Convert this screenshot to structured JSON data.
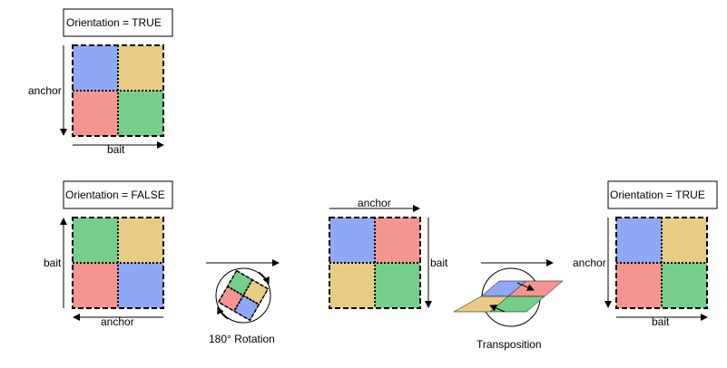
{
  "colors": {
    "blue": "#8fa8f5",
    "yellow": "#e8cc85",
    "red": "#f5958f",
    "green": "#75cf8a",
    "stroke": "#000000"
  },
  "panels": {
    "top": {
      "title": "Orientation = TRUE",
      "vertical_label": "anchor",
      "horizontal_label": "bait",
      "quadrants": [
        "blue",
        "yellow",
        "red",
        "green"
      ]
    },
    "bottom_left": {
      "title": "Orientation = FALSE",
      "vertical_label": "bait",
      "horizontal_label": "anchor",
      "quadrants": [
        "green",
        "yellow",
        "red",
        "blue"
      ]
    },
    "middle": {
      "top_label": "anchor",
      "side_label": "bait",
      "quadrants": [
        "blue",
        "red",
        "yellow",
        "green"
      ]
    },
    "right": {
      "title": "Orientation = TRUE",
      "vertical_label": "anchor",
      "horizontal_label": "bait",
      "quadrants": [
        "blue",
        "yellow",
        "red",
        "green"
      ]
    }
  },
  "operations": {
    "rotation_label": "180° Rotation",
    "transposition_label": "Transposition"
  }
}
